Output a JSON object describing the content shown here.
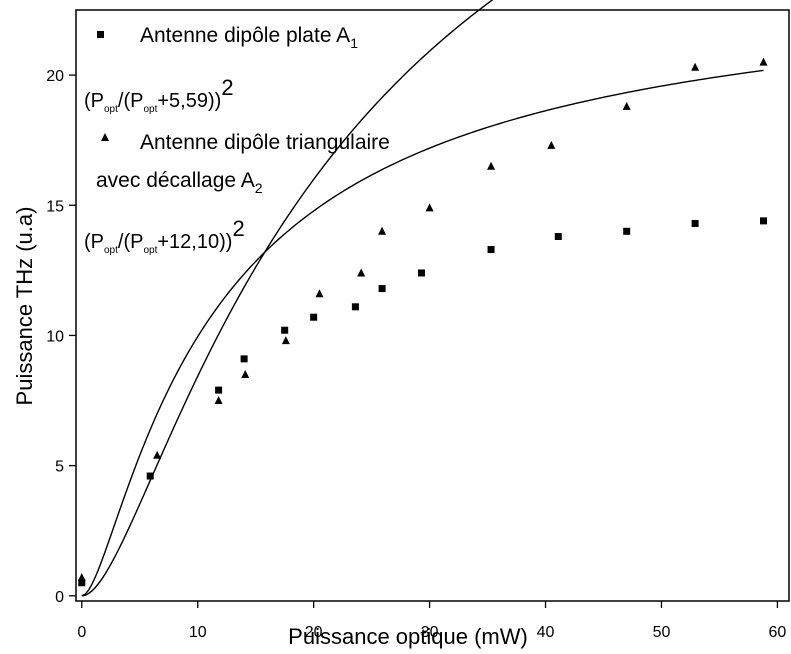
{
  "chart_data": {
    "type": "scatter",
    "xlabel": "Puissance optique (mW)",
    "ylabel": "Puissance THz (u.a)",
    "xlim": [
      -0.5,
      61
    ],
    "ylim": [
      -0.2,
      22.5
    ],
    "x_ticks": [
      0,
      10,
      20,
      30,
      40,
      50,
      60
    ],
    "y_ticks": [
      0,
      5,
      10,
      15,
      20
    ],
    "x_tick_labels": [
      "0",
      "10",
      "20",
      "30",
      "40",
      "50",
      "60"
    ],
    "y_tick_labels": [
      "0",
      "5",
      "10",
      "15",
      "20"
    ],
    "grid": false,
    "legend_position": "top-left",
    "series": [
      {
        "name": "Antenne dipôle plate A1",
        "label_parts": {
          "text": "Antenne dipôle plate A",
          "sub": "1"
        },
        "marker": "square",
        "color": "#000000",
        "x": [
          0,
          5.9,
          11.8,
          14.0,
          17.5,
          20.0,
          23.6,
          25.9,
          29.3,
          35.3,
          41.1,
          47.0,
          52.9,
          58.8
        ],
        "y": [
          0.5,
          4.6,
          7.9,
          9.1,
          10.2,
          10.7,
          11.1,
          11.8,
          12.4,
          13.3,
          13.8,
          14.0,
          14.3,
          14.4
        ],
        "fit": {
          "formula_parts": {
            "open": "(P",
            "sub1": "opt",
            "mid": "/(P",
            "sub2": "opt",
            "rest": "+5,59))",
            "sup": "2"
          },
          "a": 24.2,
          "b": 5.59
        }
      },
      {
        "name": "Antenne dipôle triangulaire avec décallage A2",
        "label_line1": "Antenne dipôle triangulaire",
        "label_parts": {
          "text": "avec décallage A",
          "sub": "2"
        },
        "marker": "triangle",
        "color": "#000000",
        "x": [
          0,
          6.5,
          11.8,
          14.1,
          17.6,
          20.5,
          24.1,
          25.9,
          30.0,
          35.3,
          40.5,
          47.0,
          52.9,
          58.8
        ],
        "y": [
          0.7,
          5.4,
          7.5,
          8.5,
          9.8,
          11.6,
          12.4,
          14.0,
          14.9,
          16.5,
          17.3,
          18.8,
          20.3,
          20.5
        ],
        "fit": {
          "formula_parts": {
            "open": "(P",
            "sub1": "opt",
            "mid": "/(P",
            "sub2": "opt",
            "rest": "+12,10))",
            "sup": "2"
          },
          "a": 41.2,
          "b": 12.1
        }
      }
    ]
  }
}
